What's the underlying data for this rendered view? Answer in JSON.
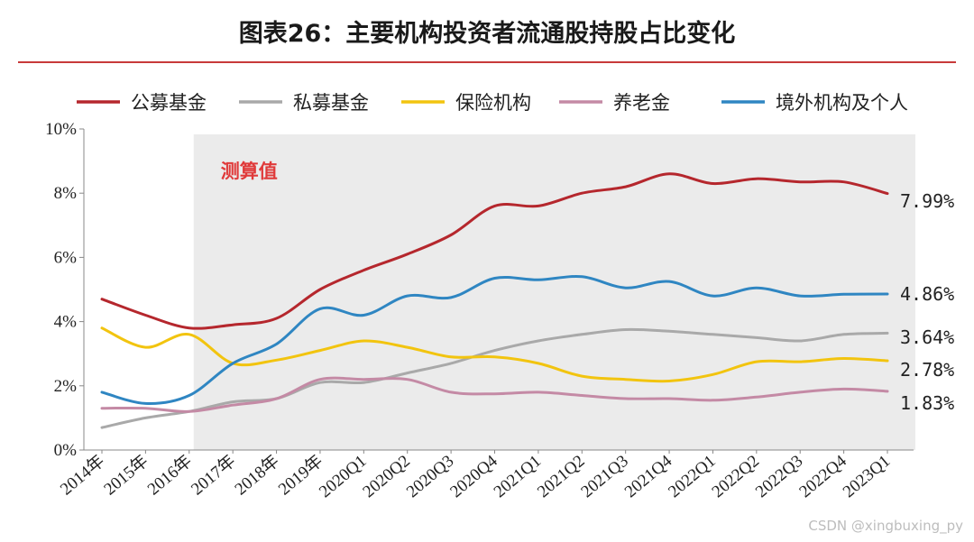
{
  "title": "图表26：主要机构投资者流通股持股占比变化",
  "colors": {
    "rule": "#c83a3a",
    "shade": "#ebebeb",
    "shade_label": "#e03a3a",
    "axis": "#888888"
  },
  "watermark": "CSDN @xingbuxing_py",
  "chart_data": {
    "type": "line",
    "title": "图表26：主要机构投资者流通股持股占比变化",
    "xlabel": "",
    "ylabel": "",
    "ylim": [
      0,
      10
    ],
    "yticks": [
      "0%",
      "2%",
      "4%",
      "6%",
      "8%",
      "10%"
    ],
    "categories": [
      "2014年",
      "2015年",
      "2016年",
      "2017年",
      "2018年",
      "2019年",
      "2020Q1",
      "2020Q2",
      "2020Q3",
      "2020Q4",
      "2021Q1",
      "2021Q2",
      "2021Q3",
      "2021Q4",
      "2022Q1",
      "2022Q2",
      "2022Q3",
      "2022Q4",
      "2023Q1"
    ],
    "shaded_region": {
      "from_index": 2,
      "to_index": 18,
      "label": "测算值"
    },
    "series": [
      {
        "name": "公募基金",
        "color": "#b5272d",
        "values": [
          4.7,
          4.2,
          3.8,
          3.9,
          4.1,
          5.0,
          5.6,
          6.1,
          6.7,
          7.6,
          7.6,
          8.0,
          8.2,
          8.6,
          8.3,
          8.45,
          8.35,
          8.35,
          7.99
        ],
        "end_label": "7.99%"
      },
      {
        "name": "私募基金",
        "color": "#a9a9a9",
        "values": [
          0.7,
          1.0,
          1.2,
          1.5,
          1.6,
          2.1,
          2.1,
          2.4,
          2.7,
          3.1,
          3.4,
          3.6,
          3.75,
          3.7,
          3.6,
          3.5,
          3.4,
          3.6,
          3.64
        ],
        "end_label": "3.64%"
      },
      {
        "name": "保险机构",
        "color": "#f2c40f",
        "values": [
          3.8,
          3.2,
          3.6,
          2.7,
          2.8,
          3.1,
          3.4,
          3.2,
          2.9,
          2.9,
          2.7,
          2.3,
          2.2,
          2.15,
          2.35,
          2.75,
          2.75,
          2.85,
          2.78
        ],
        "end_label": "2.78%"
      },
      {
        "name": "养老金",
        "color": "#c48aa5",
        "values": [
          1.3,
          1.3,
          1.2,
          1.4,
          1.6,
          2.2,
          2.2,
          2.2,
          1.8,
          1.75,
          1.8,
          1.7,
          1.6,
          1.6,
          1.55,
          1.65,
          1.8,
          1.9,
          1.83
        ],
        "end_label": "1.83%"
      },
      {
        "name": "境外机构及个人",
        "color": "#2f86c2",
        "values": [
          1.8,
          1.45,
          1.7,
          2.7,
          3.3,
          4.4,
          4.2,
          4.8,
          4.75,
          5.35,
          5.3,
          5.4,
          5.05,
          5.25,
          4.8,
          5.05,
          4.8,
          4.85,
          4.86
        ],
        "end_label": "4.86%"
      }
    ]
  }
}
